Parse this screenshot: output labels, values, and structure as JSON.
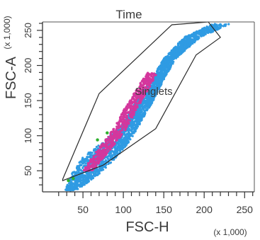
{
  "chart_data": {
    "type": "scatter",
    "title": "Time",
    "xlabel": "FSC-H",
    "ylabel": "FSC-A",
    "x_multiplier": "(x 1,000)",
    "y_multiplier": "(x 1,000)",
    "xlim": [
      0,
      262
    ],
    "ylim": [
      20,
      262
    ],
    "x_ticks": [
      50,
      100,
      150,
      200,
      250
    ],
    "x_tick_labels": [
      "50",
      "100",
      "150",
      "200",
      "250"
    ],
    "y_ticks": [
      50,
      100,
      150,
      200,
      250
    ],
    "y_tick_labels": [
      "50",
      "100",
      "150",
      "200",
      "250"
    ],
    "grid": false,
    "series": [
      {
        "color": "#2f9be3",
        "band": [
          [
            22,
            42,
            28
          ],
          [
            45,
            70,
            36
          ],
          [
            70,
            92,
            50
          ],
          [
            95,
            110,
            80
          ],
          [
            120,
            122,
            101
          ],
          [
            150,
            137,
            116
          ],
          [
            180,
            150,
            135
          ],
          [
            210,
            165,
            150
          ],
          [
            240,
            195,
            175
          ],
          [
            259,
            232,
            210
          ]
        ]
      },
      {
        "color": "#d4379d",
        "band": [
          [
            50,
            62,
            50
          ],
          [
            80,
            84,
            68
          ],
          [
            110,
            104,
            88
          ],
          [
            140,
            118,
            102
          ],
          [
            170,
            133,
            118
          ],
          [
            190,
            142,
            130
          ]
        ]
      },
      {
        "color": "#2db02d",
        "points": [
          [
            32,
            36
          ],
          [
            38,
            39
          ],
          [
            68,
            94
          ],
          [
            80,
            104
          ]
        ]
      }
    ],
    "gate": {
      "name": "Singlets",
      "polygon": [
        [
          25,
          38
        ],
        [
          70,
          160
        ],
        [
          160,
          258
        ],
        [
          205,
          262
        ],
        [
          220,
          240
        ],
        [
          190,
          215
        ],
        [
          140,
          110
        ],
        [
          75,
          58
        ],
        [
          25,
          36
        ]
      ]
    }
  }
}
